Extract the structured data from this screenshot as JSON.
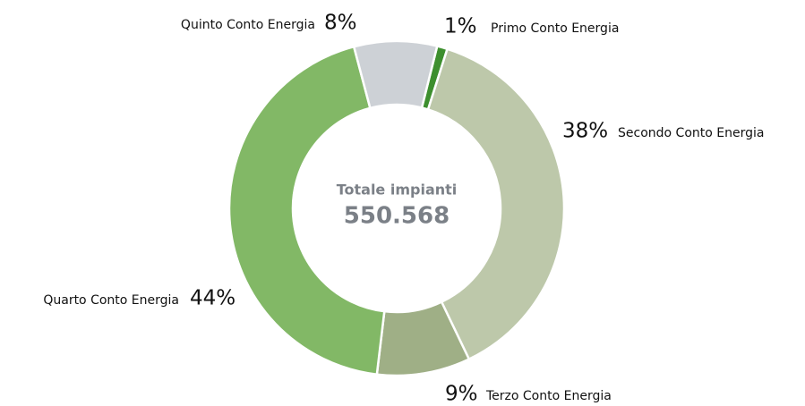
{
  "chart_data": {
    "type": "donut",
    "center_title": "Totale impianti",
    "center_value": "550.568",
    "categories": [
      "Primo Conto Energia",
      "Secondo Conto Energia",
      "Terzo Conto Energia",
      "Quarto Conto Energia",
      "Quinto Conto Energia"
    ],
    "values": [
      1,
      38,
      9,
      44,
      8
    ],
    "value_labels": [
      "1%",
      "38%",
      "9%",
      "44%",
      "8%"
    ],
    "colors": [
      "#3d8f2e",
      "#bdc8aa",
      "#9faf86",
      "#82b866",
      "#cdd1d6"
    ]
  }
}
